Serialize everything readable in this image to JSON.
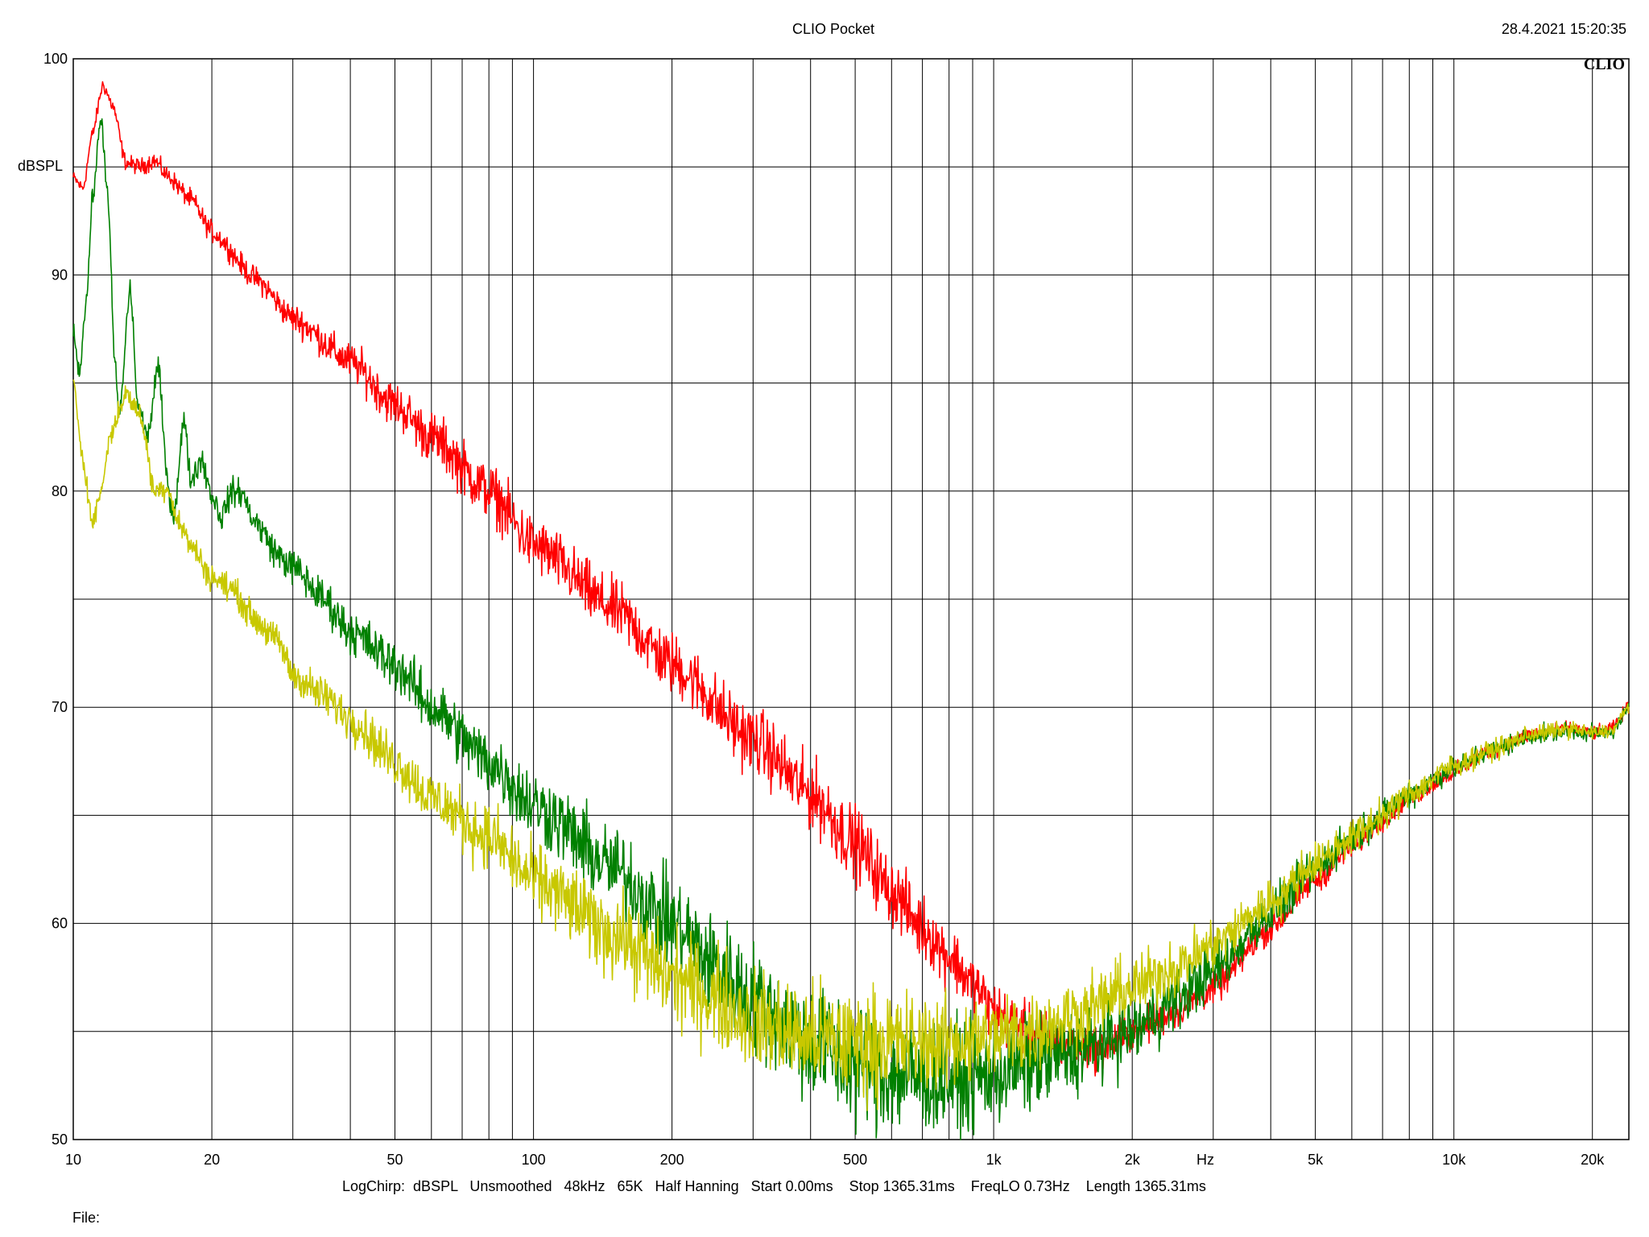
{
  "header": {
    "title": "CLIO Pocket",
    "timestamp": "28.4.2021 15:20:35",
    "logo_text": "CLIO"
  },
  "footer": {
    "params": "LogChirp:  dBSPL   Unsmoothed   48kHz   65K   Half Hanning   Start 0.00ms    Stop 1365.31ms    FreqLO 0.73Hz    Length 1365.31ms",
    "file_label": "File:"
  },
  "chart_data": {
    "type": "line",
    "title": "CLIO Pocket",
    "xlabel": "Hz",
    "ylabel": "dBSPL",
    "x_scale": "log",
    "xlim": [
      10,
      24000
    ],
    "ylim": [
      50,
      100
    ],
    "grid": true,
    "legend": "none",
    "x_tick_labels": [
      {
        "value": 10,
        "label": "10"
      },
      {
        "value": 20,
        "label": "20"
      },
      {
        "value": 50,
        "label": "50"
      },
      {
        "value": 100,
        "label": "100"
      },
      {
        "value": 200,
        "label": "200"
      },
      {
        "value": 500,
        "label": "500"
      },
      {
        "value": 1000,
        "label": "1k"
      },
      {
        "value": 2000,
        "label": "2k"
      },
      {
        "value": 5000,
        "label": "5k"
      },
      {
        "value": 10000,
        "label": "10k"
      },
      {
        "value": 20000,
        "label": "20k"
      }
    ],
    "x_gridlines": [
      10,
      20,
      30,
      40,
      50,
      60,
      70,
      80,
      90,
      100,
      200,
      300,
      400,
      500,
      600,
      700,
      800,
      900,
      1000,
      2000,
      3000,
      4000,
      5000,
      6000,
      7000,
      8000,
      9000,
      10000,
      20000
    ],
    "y_tick_labels": [
      {
        "value": 50,
        "label": "50"
      },
      {
        "value": 60,
        "label": "60"
      },
      {
        "value": 70,
        "label": "70"
      },
      {
        "value": 80,
        "label": "80"
      },
      {
        "value": 90,
        "label": "90"
      },
      {
        "value": 100,
        "label": "100"
      }
    ],
    "y_gridlines": [
      50,
      55,
      60,
      65,
      70,
      75,
      80,
      85,
      90,
      95,
      100
    ],
    "series": [
      {
        "color": "#ff0000",
        "noise": [
          0.2,
          0.4,
          0.9,
          1.0,
          1.2,
          0.8,
          0.5,
          0.3,
          0.2
        ],
        "points": [
          [
            10,
            94.5
          ],
          [
            10.5,
            94.0
          ],
          [
            11,
            96.5
          ],
          [
            11.6,
            98.8
          ],
          [
            12.2,
            97.8
          ],
          [
            13,
            95.2
          ],
          [
            14,
            95.0
          ],
          [
            15,
            95.3
          ],
          [
            16,
            94.6
          ],
          [
            18,
            93.5
          ],
          [
            20,
            92.0
          ],
          [
            25,
            89.8
          ],
          [
            30,
            88.0
          ],
          [
            40,
            86.0
          ],
          [
            50,
            84.0
          ],
          [
            60,
            82.5
          ],
          [
            80,
            80.0
          ],
          [
            100,
            77.5
          ],
          [
            150,
            74.5
          ],
          [
            200,
            72.0
          ],
          [
            300,
            68.5
          ],
          [
            400,
            66.0
          ],
          [
            500,
            63.7
          ],
          [
            600,
            61.5
          ],
          [
            700,
            59.8
          ],
          [
            800,
            58.5
          ],
          [
            900,
            57.2
          ],
          [
            1000,
            56.0
          ],
          [
            1100,
            55.4
          ],
          [
            1200,
            55.0
          ],
          [
            1400,
            54.5
          ],
          [
            1700,
            54.2
          ],
          [
            2000,
            55.0
          ],
          [
            2500,
            56.0
          ],
          [
            3000,
            57.0
          ],
          [
            4000,
            59.8
          ],
          [
            5000,
            62.0
          ],
          [
            6000,
            63.5
          ],
          [
            7000,
            64.8
          ],
          [
            8000,
            65.8
          ],
          [
            10000,
            67.0
          ],
          [
            12000,
            68.0
          ],
          [
            15000,
            68.8
          ],
          [
            18000,
            69.0
          ],
          [
            20000,
            68.8
          ],
          [
            22000,
            69.0
          ],
          [
            24000,
            70.0
          ]
        ]
      },
      {
        "color": "#008000",
        "noise": [
          0.3,
          0.5,
          1.0,
          1.5,
          2.0,
          1.5,
          0.8,
          0.4,
          0.2
        ],
        "points": [
          [
            10,
            87.5
          ],
          [
            10.3,
            85.5
          ],
          [
            10.7,
            89.0
          ],
          [
            11,
            93.5
          ],
          [
            11.5,
            97.3
          ],
          [
            11.9,
            93.5
          ],
          [
            12.3,
            86.0
          ],
          [
            12.6,
            83.5
          ],
          [
            13.3,
            89.5
          ],
          [
            13.8,
            84.0
          ],
          [
            14.5,
            82.5
          ],
          [
            15.3,
            85.8
          ],
          [
            16,
            80.5
          ],
          [
            16.5,
            78.8
          ],
          [
            17.4,
            83.3
          ],
          [
            18,
            80.5
          ],
          [
            19,
            81.5
          ],
          [
            20,
            79.8
          ],
          [
            21,
            78.8
          ],
          [
            22,
            79.9
          ],
          [
            23,
            80.0
          ],
          [
            25,
            78.5
          ],
          [
            28,
            77.0
          ],
          [
            30,
            76.5
          ],
          [
            35,
            75.0
          ],
          [
            40,
            73.5
          ],
          [
            50,
            72.0
          ],
          [
            60,
            70.0
          ],
          [
            80,
            67.5
          ],
          [
            100,
            65.5
          ],
          [
            150,
            62.5
          ],
          [
            200,
            60.0
          ],
          [
            250,
            58.0
          ],
          [
            300,
            56.5
          ],
          [
            400,
            54.5
          ],
          [
            500,
            53.5
          ],
          [
            600,
            53.0
          ],
          [
            700,
            52.8
          ],
          [
            800,
            52.8
          ],
          [
            900,
            52.8
          ],
          [
            1000,
            53.0
          ],
          [
            1200,
            53.5
          ],
          [
            1500,
            54.0
          ],
          [
            2000,
            55.0
          ],
          [
            2500,
            56.5
          ],
          [
            3000,
            57.8
          ],
          [
            4000,
            60.5
          ],
          [
            5000,
            62.5
          ],
          [
            6000,
            64.0
          ],
          [
            7000,
            65.0
          ],
          [
            8000,
            66.0
          ],
          [
            10000,
            67.2
          ],
          [
            12000,
            68.0
          ],
          [
            15000,
            68.7
          ],
          [
            18000,
            68.9
          ],
          [
            20000,
            68.8
          ],
          [
            22000,
            68.8
          ],
          [
            24000,
            70.0
          ]
        ]
      },
      {
        "color": "#c8c800",
        "noise": [
          0.3,
          0.5,
          1.0,
          1.5,
          1.8,
          1.2,
          0.8,
          0.4,
          0.2
        ],
        "points": [
          [
            10,
            85.0
          ],
          [
            10.5,
            81.5
          ],
          [
            11,
            78.5
          ],
          [
            11.5,
            80.0
          ],
          [
            12,
            82.5
          ],
          [
            13,
            84.5
          ],
          [
            14,
            83.5
          ],
          [
            15,
            80.0
          ],
          [
            16,
            80.2
          ],
          [
            17,
            78.5
          ],
          [
            18,
            77.5
          ],
          [
            20,
            76.0
          ],
          [
            22,
            75.5
          ],
          [
            25,
            74.0
          ],
          [
            28,
            73.0
          ],
          [
            30,
            71.5
          ],
          [
            35,
            70.5
          ],
          [
            40,
            69.5
          ],
          [
            50,
            67.5
          ],
          [
            60,
            65.8
          ],
          [
            80,
            64.0
          ],
          [
            100,
            62.0
          ],
          [
            150,
            59.5
          ],
          [
            200,
            57.5
          ],
          [
            250,
            56.5
          ],
          [
            300,
            55.5
          ],
          [
            400,
            54.7
          ],
          [
            500,
            54.5
          ],
          [
            600,
            54.5
          ],
          [
            700,
            54.5
          ],
          [
            800,
            54.5
          ],
          [
            900,
            54.6
          ],
          [
            1000,
            54.8
          ],
          [
            1200,
            55.0
          ],
          [
            1500,
            55.8
          ],
          [
            2000,
            57.0
          ],
          [
            2500,
            58.0
          ],
          [
            3000,
            59.0
          ],
          [
            4000,
            61.0
          ],
          [
            5000,
            62.8
          ],
          [
            6000,
            64.0
          ],
          [
            7000,
            65.0
          ],
          [
            8000,
            66.0
          ],
          [
            10000,
            67.3
          ],
          [
            12000,
            68.0
          ],
          [
            15000,
            68.8
          ],
          [
            18000,
            69.0
          ],
          [
            20000,
            68.8
          ],
          [
            22000,
            68.9
          ],
          [
            24000,
            70.0
          ]
        ]
      }
    ]
  }
}
